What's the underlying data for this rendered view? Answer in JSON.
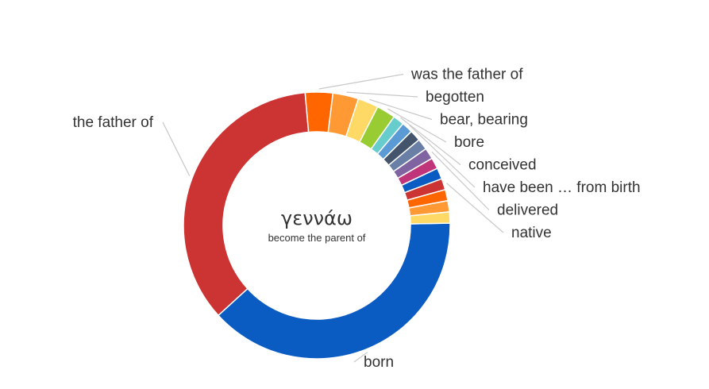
{
  "chart_data": {
    "type": "pie",
    "donut": true,
    "center_title": "γεννάω",
    "center_subtitle": "become the parent of",
    "slices": [
      {
        "label": "born",
        "value": 37.0,
        "color": "#0b5cc2"
      },
      {
        "label": "the father of",
        "value": 34.0,
        "color": "#cc3333"
      },
      {
        "label": "was the father of",
        "value": 3.2,
        "color": "#ff6600"
      },
      {
        "label": "begotten",
        "value": 3.0,
        "color": "#ff9933"
      },
      {
        "label": "bear, bearing",
        "value": 2.4,
        "color": "#ffd966"
      },
      {
        "label": "bore",
        "value": 2.2,
        "color": "#99cc33"
      },
      {
        "label": "conceived",
        "value": 1.3,
        "color": "#66cccc"
      },
      {
        "label": "have been … from birth",
        "value": 1.3,
        "color": "#5b9bd5"
      },
      {
        "label": "",
        "value": 1.3,
        "color": "#44546a"
      },
      {
        "label": "",
        "value": 1.3,
        "color": "#6a7fa6"
      },
      {
        "label": "delivered",
        "value": 1.3,
        "color": "#8064a2"
      },
      {
        "label": "",
        "value": 1.3,
        "color": "#c0357a"
      },
      {
        "label": "",
        "value": 1.3,
        "color": "#0b5cc2"
      },
      {
        "label": "native",
        "value": 1.3,
        "color": "#cc3333"
      },
      {
        "label": "",
        "value": 1.3,
        "color": "#ff6600"
      },
      {
        "label": "",
        "value": 1.3,
        "color": "#ff9933"
      },
      {
        "label": "",
        "value": 1.3,
        "color": "#ffd966"
      }
    ]
  }
}
